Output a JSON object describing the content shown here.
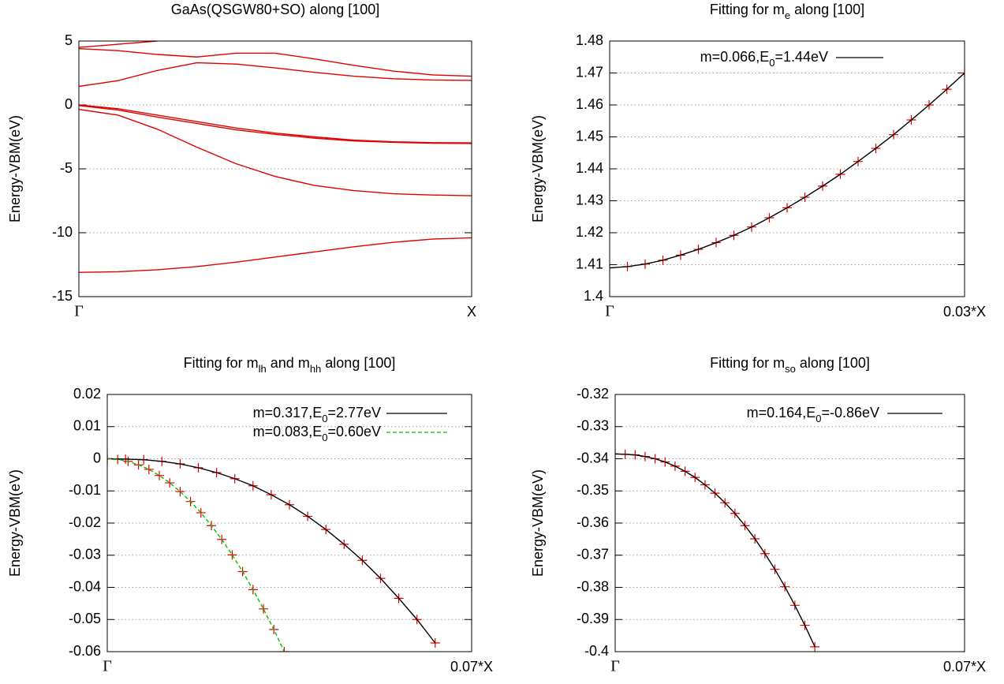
{
  "chart_data": [
    {
      "type": "line",
      "title": [
        {
          "text": "GaAs(QSGW80+SO) along [100]"
        }
      ],
      "ylabel": "Energy-VBM(eV)",
      "x": [
        0,
        0.1,
        0.2,
        0.3,
        0.4,
        0.5,
        0.6,
        0.7,
        0.8,
        0.9,
        1
      ],
      "series": [
        {
          "style": "line",
          "color": "#e00000",
          "values": [
            -13.1,
            -13.05,
            -12.9,
            -12.65,
            -12.3,
            -11.9,
            -11.5,
            -11.1,
            -10.75,
            -10.5,
            -10.4
          ]
        },
        {
          "style": "line",
          "color": "#e00000",
          "values": [
            -0.35,
            -0.8,
            -1.9,
            -3.3,
            -4.6,
            -5.6,
            -6.3,
            -6.7,
            -6.95,
            -7.05,
            -7.1
          ]
        },
        {
          "style": "line",
          "color": "#e00000",
          "values": [
            0,
            -0.3,
            -0.8,
            -1.3,
            -1.8,
            -2.2,
            -2.5,
            -2.75,
            -2.88,
            -2.95,
            -2.97
          ]
        },
        {
          "style": "line",
          "color": "#e00000",
          "values": [
            -0.05,
            -0.4,
            -0.95,
            -1.45,
            -1.95,
            -2.3,
            -2.6,
            -2.82,
            -2.93,
            -3.0,
            -3.02
          ]
        },
        {
          "style": "line",
          "color": "#e00000",
          "values": [
            1.45,
            1.9,
            2.7,
            3.3,
            3.2,
            2.9,
            2.55,
            2.25,
            2.05,
            1.95,
            1.92
          ]
        },
        {
          "style": "line",
          "color": "#e00000",
          "values": [
            4.4,
            4.25,
            3.95,
            3.75,
            4.05,
            4.05,
            3.6,
            3.1,
            2.65,
            2.35,
            2.25
          ]
        },
        {
          "style": "line",
          "color": "#e00000",
          "values": [
            4.5,
            4.75,
            5.0,
            null,
            null,
            null,
            null,
            null,
            null,
            null,
            null
          ]
        }
      ],
      "xlim": [
        0,
        1
      ],
      "xticks": [
        {
          "value": 0,
          "label": "Γ"
        },
        {
          "value": 1,
          "label": "X"
        }
      ],
      "ylim": [
        -15,
        5
      ],
      "yticks": [
        5,
        0,
        -5,
        -10,
        -15
      ],
      "grid": true
    },
    {
      "type": "line",
      "title": [
        {
          "text": "Fitting for m"
        },
        {
          "text": "e",
          "sub": true
        },
        {
          "text": " along [100]"
        }
      ],
      "ylabel": "Energy-VBM(eV)",
      "x": [
        0,
        0.0015,
        0.003,
        0.0045,
        0.006,
        0.0075,
        0.009,
        0.0105,
        0.012,
        0.0135,
        0.015,
        0.0165,
        0.018,
        0.0195,
        0.021,
        0.0225,
        0.024,
        0.0255,
        0.027,
        0.0285,
        0.03
      ],
      "series": [
        {
          "style": "points",
          "color": "#e00000",
          "values": [
            1.409,
            1.4094,
            1.4102,
            1.4114,
            1.413,
            1.4148,
            1.4169,
            1.4192,
            1.4218,
            1.4247,
            1.4278,
            1.4311,
            1.4346,
            1.4383,
            1.4423,
            1.4464,
            1.4507,
            1.4553,
            1.46,
            1.4649,
            1.47
          ]
        },
        {
          "style": "line",
          "color": "#000000",
          "name": [
            {
              "text": "m=0.066,E"
            },
            {
              "text": "0",
              "sub": true
            },
            {
              "text": "=1.44eV"
            }
          ],
          "values": [
            1.409,
            1.4094,
            1.4102,
            1.4114,
            1.413,
            1.4148,
            1.4169,
            1.4192,
            1.4218,
            1.4247,
            1.4278,
            1.4311,
            1.4346,
            1.4383,
            1.4423,
            1.4464,
            1.4507,
            1.4553,
            1.46,
            1.4649,
            1.47
          ]
        }
      ],
      "xlim": [
        0,
        0.03
      ],
      "xticks": [
        {
          "value": 0,
          "label": "Γ"
        },
        {
          "value": 0.03,
          "label": "0.03*X"
        }
      ],
      "ylim": [
        1.4,
        1.48
      ],
      "yticks": [
        1.48,
        1.47,
        1.46,
        1.45,
        1.44,
        1.43,
        1.42,
        1.41,
        1.4
      ],
      "grid": true,
      "legend": "top-right"
    },
    {
      "type": "line",
      "title": [
        {
          "text": "Fitting for m"
        },
        {
          "text": "lh",
          "sub": true
        },
        {
          "text": " and m"
        },
        {
          "text": "hh",
          "sub": true
        },
        {
          "text": " along [100]"
        }
      ],
      "ylabel": "Energy-VBM(eV)",
      "series": [
        {
          "style": "points",
          "color": "#e00000",
          "x": [
            0,
            0.0035,
            0.007,
            0.0105,
            0.014,
            0.0175,
            0.021,
            0.0245,
            0.028,
            0.0315,
            0.035,
            0.0385,
            0.042,
            0.0455,
            0.049,
            0.0525,
            0.056,
            0.0595,
            0.063
          ],
          "values": [
            0,
            -0.0001,
            -0.0003,
            -0.0008,
            -0.0016,
            -0.0028,
            -0.0043,
            -0.0062,
            -0.0084,
            -0.0112,
            -0.0143,
            -0.0179,
            -0.022,
            -0.0266,
            -0.0316,
            -0.0372,
            -0.0434,
            -0.05,
            -0.0573
          ]
        },
        {
          "style": "points",
          "color": "#e00000",
          "x": [
            0,
            0.002,
            0.004,
            0.006,
            0.008,
            0.01,
            0.012,
            0.014,
            0.016,
            0.018,
            0.02,
            0.022,
            0.024,
            0.026,
            0.028,
            0.03,
            0.032,
            0.034
          ],
          "values": [
            0,
            -0.0002,
            -0.0008,
            -0.0019,
            -0.0033,
            -0.0052,
            -0.0075,
            -0.0102,
            -0.0133,
            -0.0168,
            -0.0208,
            -0.0251,
            -0.0299,
            -0.0351,
            -0.0407,
            -0.0467,
            -0.0531,
            -0.06
          ]
        },
        {
          "style": "line",
          "color": "#000000",
          "name": [
            {
              "text": "m=0.317,E"
            },
            {
              "text": "0",
              "sub": true
            },
            {
              "text": "=2.77eV"
            }
          ],
          "x": [
            0,
            0.0035,
            0.007,
            0.0105,
            0.014,
            0.0175,
            0.021,
            0.0245,
            0.028,
            0.0315,
            0.035,
            0.0385,
            0.042,
            0.0455,
            0.049,
            0.0525,
            0.056,
            0.0595,
            0.063
          ],
          "values": [
            0,
            -0.0001,
            -0.0003,
            -0.0008,
            -0.0016,
            -0.0028,
            -0.0043,
            -0.0062,
            -0.0084,
            -0.0112,
            -0.0143,
            -0.0179,
            -0.022,
            -0.0266,
            -0.0316,
            -0.0372,
            -0.0434,
            -0.05,
            -0.0573
          ]
        },
        {
          "style": "line",
          "color": "#00c000",
          "dash": true,
          "name": [
            {
              "text": "m=0.083,E"
            },
            {
              "text": "0",
              "sub": true
            },
            {
              "text": "=0.60eV"
            }
          ],
          "x": [
            0,
            0.002,
            0.004,
            0.006,
            0.008,
            0.01,
            0.012,
            0.014,
            0.016,
            0.018,
            0.02,
            0.022,
            0.024,
            0.026,
            0.028,
            0.03,
            0.032,
            0.034
          ],
          "values": [
            0,
            -0.0002,
            -0.0008,
            -0.0019,
            -0.0033,
            -0.0052,
            -0.0075,
            -0.0102,
            -0.0133,
            -0.0168,
            -0.0208,
            -0.0251,
            -0.0299,
            -0.0351,
            -0.0407,
            -0.0467,
            -0.0531,
            -0.06
          ]
        }
      ],
      "xlim": [
        0,
        0.07
      ],
      "xticks": [
        {
          "value": 0,
          "label": "Γ"
        },
        {
          "value": 0.07,
          "label": "0.07*X"
        }
      ],
      "ylim": [
        -0.06,
        0.02
      ],
      "yticks": [
        0.02,
        0.01,
        0,
        -0.01,
        -0.02,
        -0.03,
        -0.04,
        -0.05,
        -0.06
      ],
      "grid": true,
      "legend": "top-right"
    },
    {
      "type": "line",
      "title": [
        {
          "text": "Fitting for m"
        },
        {
          "text": "so",
          "sub": true
        },
        {
          "text": " along [100]"
        }
      ],
      "ylabel": "Energy-VBM(eV)",
      "x": [
        0,
        0.002,
        0.004,
        0.006,
        0.008,
        0.01,
        0.012,
        0.014,
        0.016,
        0.018,
        0.02,
        0.022,
        0.024,
        0.026,
        0.028,
        0.03,
        0.032,
        0.034,
        0.036,
        0.038,
        0.04
      ],
      "series": [
        {
          "style": "points",
          "color": "#e00000",
          "values": [
            -0.3385,
            -0.3386,
            -0.3388,
            -0.3393,
            -0.34,
            -0.341,
            -0.3423,
            -0.3439,
            -0.3458,
            -0.3481,
            -0.3507,
            -0.3537,
            -0.357,
            -0.3608,
            -0.3649,
            -0.3695,
            -0.3744,
            -0.3798,
            -0.3856,
            -0.3918,
            -0.3985
          ]
        },
        {
          "style": "line",
          "color": "#000000",
          "name": [
            {
              "text": "m=0.164,E"
            },
            {
              "text": "0",
              "sub": true
            },
            {
              "text": "=-0.86eV"
            }
          ],
          "values": [
            -0.3385,
            -0.3386,
            -0.3388,
            -0.3393,
            -0.34,
            -0.341,
            -0.3423,
            -0.3439,
            -0.3458,
            -0.3481,
            -0.3507,
            -0.3537,
            -0.357,
            -0.3608,
            -0.3649,
            -0.3695,
            -0.3744,
            -0.3798,
            -0.3856,
            -0.3918,
            -0.3985
          ]
        }
      ],
      "xlim": [
        0,
        0.07
      ],
      "xticks": [
        {
          "value": 0,
          "label": "Γ"
        },
        {
          "value": 0.07,
          "label": "0.07*X"
        }
      ],
      "ylim": [
        -0.4,
        -0.32
      ],
      "yticks": [
        -0.32,
        -0.33,
        -0.34,
        -0.35,
        -0.36,
        -0.37,
        -0.38,
        -0.39,
        -0.4
      ],
      "grid": true,
      "legend": "top-right"
    }
  ]
}
